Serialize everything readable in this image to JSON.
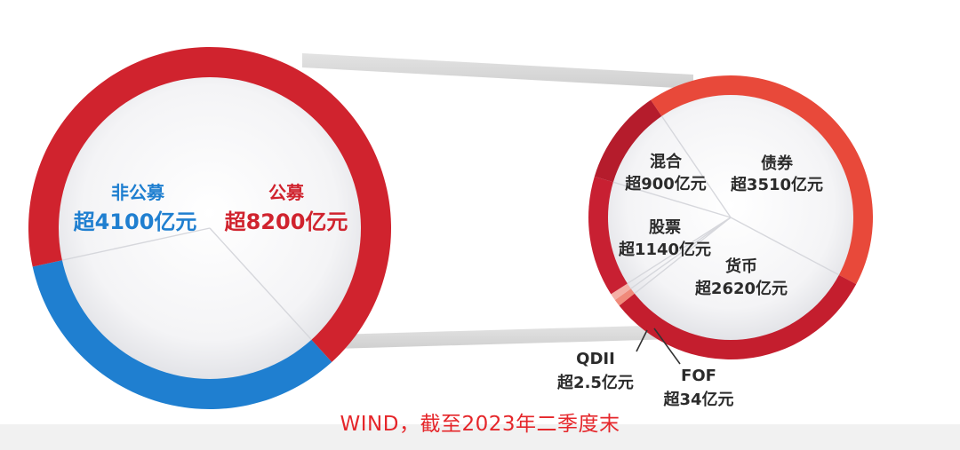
{
  "chart_data": [
    {
      "type": "pie",
      "categories": [
        "非公募",
        "公募"
      ],
      "values": [
        4100,
        8200
      ],
      "value_labels": [
        "超4100亿元",
        "超8200亿元"
      ],
      "colors": [
        "#1f7fd0",
        "#d0232e"
      ],
      "label_colors": [
        "#1f7fd0",
        "#d0232e"
      ]
    },
    {
      "type": "pie",
      "categories": [
        "债券",
        "货币",
        "FOF",
        "QDII",
        "股票",
        "混合"
      ],
      "values": [
        3510,
        2620,
        34,
        2.5,
        1140,
        900
      ],
      "value_labels": [
        "超3510亿元",
        "超2620亿元",
        "超34亿元",
        "超2.5亿元",
        "超1140亿元",
        "超900亿元"
      ],
      "colors": [
        "#e8493a",
        "#c41e2e",
        "#f08a7a",
        "#f4b0a6",
        "#c82032",
        "#b51c2c"
      ],
      "label_colors": [
        "#2b2b2b",
        "#2b2b2b",
        "#2b2b2b",
        "#2b2b2b",
        "#2b2b2b",
        "#2b2b2b"
      ]
    }
  ],
  "source_note": "WIND，截至2023年二季度末"
}
